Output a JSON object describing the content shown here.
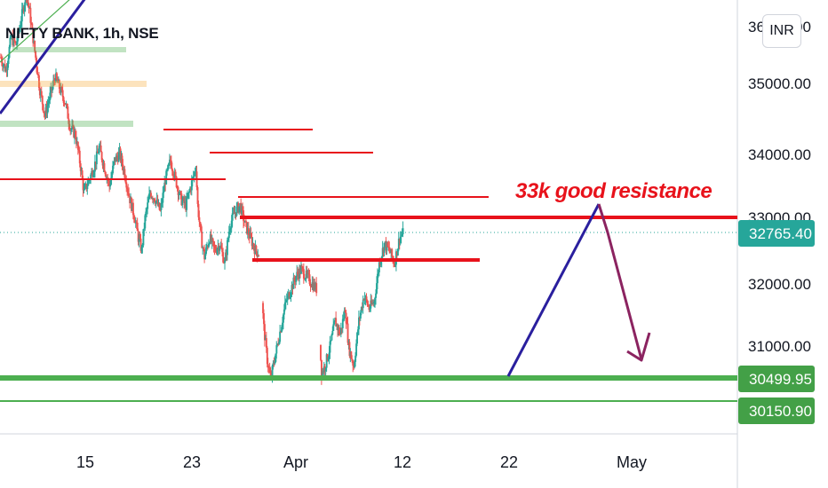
{
  "header": {
    "title": "NIFTY BANK, 1h, NSE",
    "currency": "INR"
  },
  "annotation": {
    "text": "33k good resistance",
    "color": "#e8121b"
  },
  "colors": {
    "up": "#26a69a",
    "down": "#ef5350",
    "red_line": "#e8121b",
    "green_line": "#4caf50",
    "trend_line": "#2a1f9e",
    "arrow": "#8b2360",
    "last_price_badge": "#26a69a",
    "green_badge": "#43a047"
  },
  "chart_data": {
    "type": "candlestick",
    "title": "NIFTY BANK, 1h, NSE",
    "xlabel": "",
    "ylabel": "",
    "x_tick_labels": [
      "15",
      "23",
      "Apr",
      "12",
      "22",
      "May"
    ],
    "y_tick_labels": [
      "35000.00",
      "34000.00",
      "32000.00",
      "31000.00"
    ],
    "ylim": [
      30000,
      36500
    ],
    "grid": false,
    "last_price": {
      "label": "32765.40",
      "value": 32765.4
    },
    "level_badges": [
      {
        "label": "30499.95",
        "value": 30499.95
      },
      {
        "label": "30150.90",
        "value": 30150.9
      }
    ],
    "close_path": [
      [
        0,
        35500
      ],
      [
        6,
        35300
      ],
      [
        12,
        35800
      ],
      [
        18,
        35700
      ],
      [
        24,
        36100
      ],
      [
        30,
        36500
      ],
      [
        34,
        36200
      ],
      [
        40,
        35600
      ],
      [
        46,
        35000
      ],
      [
        52,
        34600
      ],
      [
        58,
        34900
      ],
      [
        64,
        35200
      ],
      [
        70,
        35000
      ],
      [
        76,
        34800
      ],
      [
        82,
        34400
      ],
      [
        88,
        34300
      ],
      [
        94,
        33800
      ],
      [
        98,
        33400
      ],
      [
        104,
        33600
      ],
      [
        110,
        33800
      ],
      [
        116,
        34100
      ],
      [
        122,
        33800
      ],
      [
        128,
        33500
      ],
      [
        134,
        33900
      ],
      [
        140,
        34000
      ],
      [
        146,
        33700
      ],
      [
        152,
        33300
      ],
      [
        158,
        33000
      ],
      [
        162,
        32700
      ],
      [
        166,
        32500
      ],
      [
        170,
        33000
      ],
      [
        176,
        33400
      ],
      [
        182,
        33300
      ],
      [
        188,
        33100
      ],
      [
        194,
        33600
      ],
      [
        200,
        33900
      ],
      [
        206,
        33600
      ],
      [
        212,
        33300
      ],
      [
        218,
        33200
      ],
      [
        224,
        33500
      ],
      [
        230,
        33800
      ],
      [
        232,
        33200
      ],
      [
        236,
        32700
      ],
      [
        240,
        32400
      ],
      [
        246,
        32700
      ],
      [
        252,
        32500
      ],
      [
        258,
        32600
      ],
      [
        264,
        32300
      ],
      [
        270,
        32900
      ],
      [
        276,
        33100
      ],
      [
        282,
        33200
      ],
      [
        288,
        32900
      ],
      [
        294,
        32700
      ],
      [
        300,
        32500
      ],
      [
        304,
        32450
      ],
      [
        310,
        31300
      ],
      [
        314,
        30800
      ],
      [
        318,
        30500
      ],
      [
        324,
        30900
      ],
      [
        330,
        31300
      ],
      [
        336,
        31700
      ],
      [
        342,
        31900
      ],
      [
        348,
        32100
      ],
      [
        354,
        32200
      ],
      [
        360,
        32100
      ],
      [
        366,
        32000
      ],
      [
        372,
        31900
      ],
      [
        378,
        30600
      ],
      [
        382,
        30700
      ],
      [
        388,
        31000
      ],
      [
        394,
        31400
      ],
      [
        400,
        31200
      ],
      [
        406,
        31600
      ],
      [
        410,
        31000
      ],
      [
        416,
        30700
      ],
      [
        422,
        31400
      ],
      [
        428,
        31800
      ],
      [
        434,
        31600
      ],
      [
        440,
        31700
      ],
      [
        446,
        32300
      ],
      [
        452,
        32600
      ],
      [
        458,
        32500
      ],
      [
        464,
        32300
      ],
      [
        470,
        32700
      ],
      [
        476,
        32800
      ]
    ],
    "drawings": [
      {
        "type": "support",
        "value": 30499.95
      },
      {
        "type": "support",
        "value": 30150.9
      },
      {
        "type": "resistance",
        "value": 32950
      },
      {
        "type": "support",
        "value": 32350
      }
    ]
  }
}
